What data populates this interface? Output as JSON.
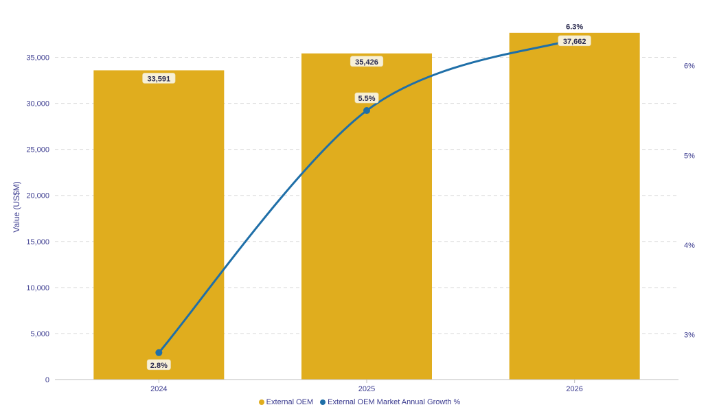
{
  "chart_data": {
    "type": "bar",
    "categories": [
      "2024",
      "2025",
      "2026"
    ],
    "series": [
      {
        "name": "External OEM",
        "type": "bar",
        "axis": "left",
        "values": [
          33591,
          35426,
          37662
        ],
        "labels": [
          "33,591",
          "35,426",
          "37,662"
        ],
        "color": "#e0ad1e"
      },
      {
        "name": "External OEM Market Annual Growth %",
        "type": "line",
        "axis": "right",
        "values": [
          2.8,
          5.5,
          6.3
        ],
        "labels": [
          "2.8%",
          "5.5%",
          "6.3%"
        ],
        "color": "#1f6fa8"
      }
    ],
    "ylabel": "Value (US$M)",
    "xlabel": "",
    "ylim": [
      0,
      37500
    ],
    "yticks": [
      "0",
      "5,000",
      "10,000",
      "15,000",
      "20,000",
      "25,000",
      "30,000",
      "35,000"
    ],
    "yticks_values": [
      0,
      5000,
      10000,
      15000,
      20000,
      25000,
      30000,
      35000
    ],
    "y2lim": [
      2.5,
      6.35
    ],
    "y2ticks": [
      "3%",
      "4%",
      "5%",
      "6%"
    ],
    "y2ticks_values": [
      3,
      4,
      5,
      6
    ],
    "grid": true,
    "legend_position": "bottom"
  },
  "colors": {
    "axis_text": "#3b3b8f",
    "grid": "#d9d9d9",
    "label_bg": "#f7f0d7"
  }
}
